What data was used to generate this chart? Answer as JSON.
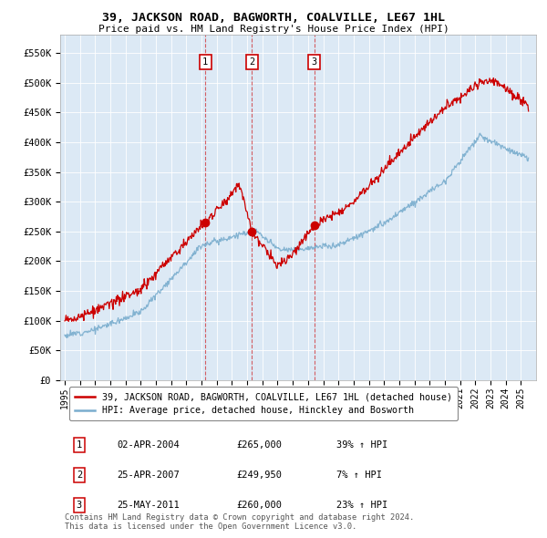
{
  "title": "39, JACKSON ROAD, BAGWORTH, COALVILLE, LE67 1HL",
  "subtitle": "Price paid vs. HM Land Registry's House Price Index (HPI)",
  "legend_line1": "39, JACKSON ROAD, BAGWORTH, COALVILLE, LE67 1HL (detached house)",
  "legend_line2": "HPI: Average price, detached house, Hinckley and Bosworth",
  "transactions": [
    {
      "num": 1,
      "date": "02-APR-2004",
      "price": "£265,000",
      "hpi": "39% ↑ HPI",
      "year": 2004.25
    },
    {
      "num": 2,
      "date": "25-APR-2007",
      "price": "£249,950",
      "hpi": "7% ↑ HPI",
      "year": 2007.32
    },
    {
      "num": 3,
      "date": "25-MAY-2011",
      "price": "£260,000",
      "hpi": "23% ↑ HPI",
      "year": 2011.4
    }
  ],
  "transaction_values": [
    265000,
    249950,
    260000
  ],
  "copyright": "Contains HM Land Registry data © Crown copyright and database right 2024.\nThis data is licensed under the Open Government Licence v3.0.",
  "red_color": "#cc0000",
  "blue_color": "#7aadce",
  "ylim": [
    0,
    580000
  ],
  "yticks": [
    0,
    50000,
    100000,
    150000,
    200000,
    250000,
    300000,
    350000,
    400000,
    450000,
    500000,
    550000
  ],
  "ytick_labels": [
    "£0",
    "£50K",
    "£100K",
    "£150K",
    "£200K",
    "£250K",
    "£300K",
    "£350K",
    "£400K",
    "£450K",
    "£500K",
    "£550K"
  ],
  "bg_color": "#dce9f5"
}
